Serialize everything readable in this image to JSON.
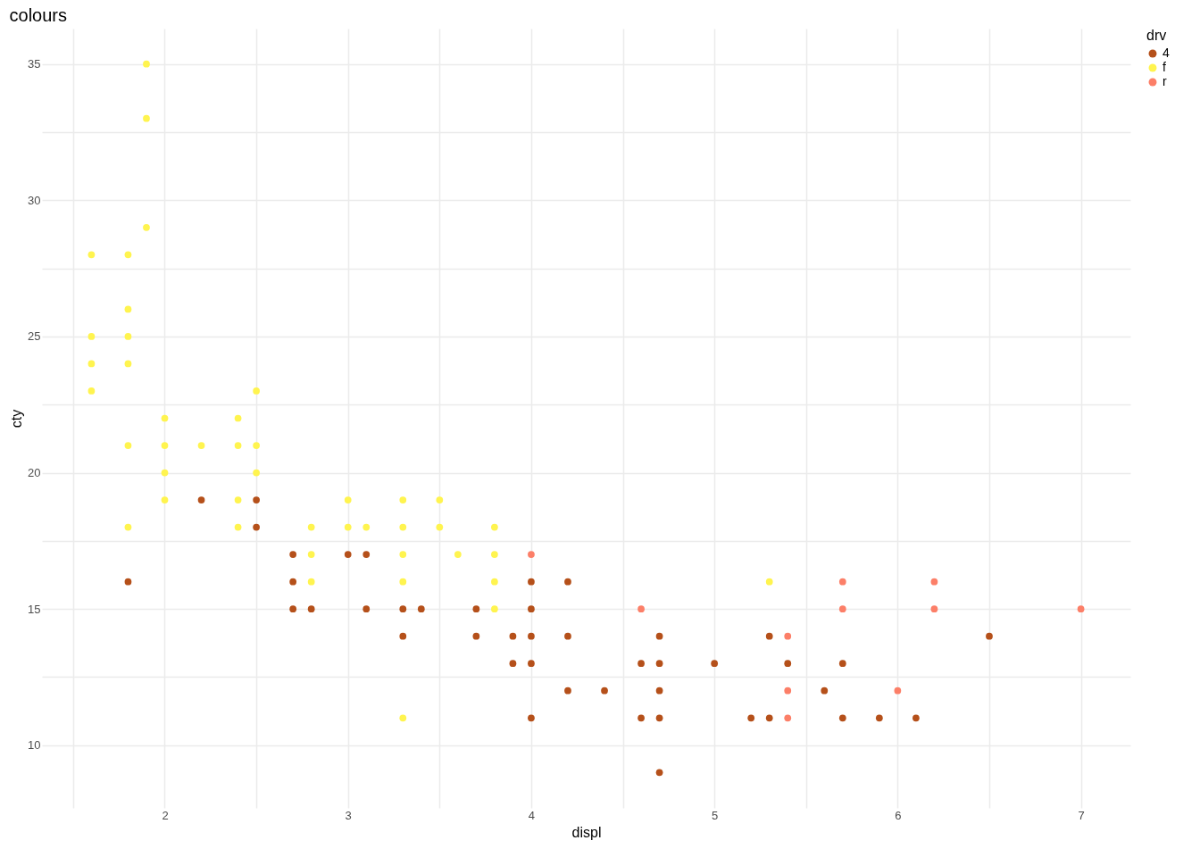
{
  "chart_data": {
    "type": "scatter",
    "title": "colours",
    "xlabel": "displ",
    "ylabel": "cty",
    "legend_title": "drv",
    "xlim": [
      1.33,
      7.27
    ],
    "ylim": [
      7.7,
      36.3
    ],
    "xticks": [
      {
        "value": 1.5,
        "label": null
      },
      2,
      {
        "value": 2.5,
        "label": null
      },
      3,
      {
        "value": 3.5,
        "label": null
      },
      4,
      {
        "value": 4.5,
        "label": null
      },
      5,
      {
        "value": 5.5,
        "label": null
      },
      6,
      {
        "value": 6.5,
        "label": null
      },
      7
    ],
    "yticks": [
      10,
      {
        "value": 12.5,
        "label": null
      },
      15,
      {
        "value": 17.5,
        "label": null
      },
      20,
      {
        "value": 22.5,
        "label": null
      },
      25,
      {
        "value": 27.5,
        "label": null
      },
      30,
      {
        "value": 32.5,
        "label": null
      },
      35
    ],
    "grid": true,
    "legend": "right",
    "marker": "circle",
    "series": [
      {
        "name": "4",
        "color": "#b5501a",
        "x": [
          1.8,
          2.2,
          2.5,
          2.5,
          2.7,
          2.7,
          2.7,
          2.8,
          3.0,
          3.1,
          3.1,
          3.3,
          3.3,
          3.4,
          3.7,
          3.7,
          3.9,
          3.9,
          4.0,
          4.0,
          4.0,
          4.0,
          4.0,
          4.2,
          4.2,
          4.2,
          4.4,
          4.6,
          4.6,
          4.7,
          4.7,
          4.7,
          4.7,
          4.7,
          5.0,
          5.2,
          5.3,
          5.3,
          5.4,
          5.6,
          5.7,
          5.7,
          5.9,
          6.1,
          6.5
        ],
        "values": [
          16,
          19,
          19,
          18,
          17,
          16,
          15,
          15,
          17,
          17,
          15,
          15,
          14,
          15,
          15,
          14,
          14,
          13,
          16,
          15,
          14,
          13,
          11,
          16,
          14,
          12,
          12,
          13,
          11,
          14,
          13,
          12,
          11,
          9,
          13,
          11,
          14,
          11,
          13,
          12,
          13,
          11,
          11,
          11,
          14
        ]
      },
      {
        "name": "f",
        "color": "#fff44f",
        "x": [
          1.6,
          1.6,
          1.6,
          1.6,
          1.8,
          1.8,
          1.8,
          1.8,
          1.8,
          1.8,
          1.9,
          1.9,
          1.9,
          2.0,
          2.0,
          2.0,
          2.0,
          2.2,
          2.4,
          2.4,
          2.4,
          2.4,
          2.5,
          2.5,
          2.5,
          2.8,
          2.8,
          2.8,
          3.0,
          3.0,
          3.1,
          3.3,
          3.3,
          3.3,
          3.3,
          3.3,
          3.5,
          3.5,
          3.6,
          3.8,
          3.8,
          3.8,
          3.8,
          5.3
        ],
        "values": [
          28,
          25,
          24,
          23,
          28,
          26,
          25,
          24,
          21,
          18,
          35,
          33,
          29,
          22,
          21,
          20,
          19,
          21,
          22,
          21,
          19,
          18,
          23,
          21,
          20,
          18,
          17,
          16,
          19,
          18,
          18,
          19,
          18,
          17,
          16,
          11,
          19,
          18,
          17,
          18,
          17,
          16,
          15,
          16
        ]
      },
      {
        "name": "r",
        "color": "#fc7f68",
        "x": [
          4.0,
          4.6,
          5.4,
          5.4,
          5.4,
          5.7,
          5.7,
          6.0,
          6.2,
          6.2,
          7.0
        ],
        "values": [
          17,
          15,
          14,
          12,
          11,
          16,
          15,
          12,
          16,
          15,
          15
        ]
      }
    ]
  }
}
